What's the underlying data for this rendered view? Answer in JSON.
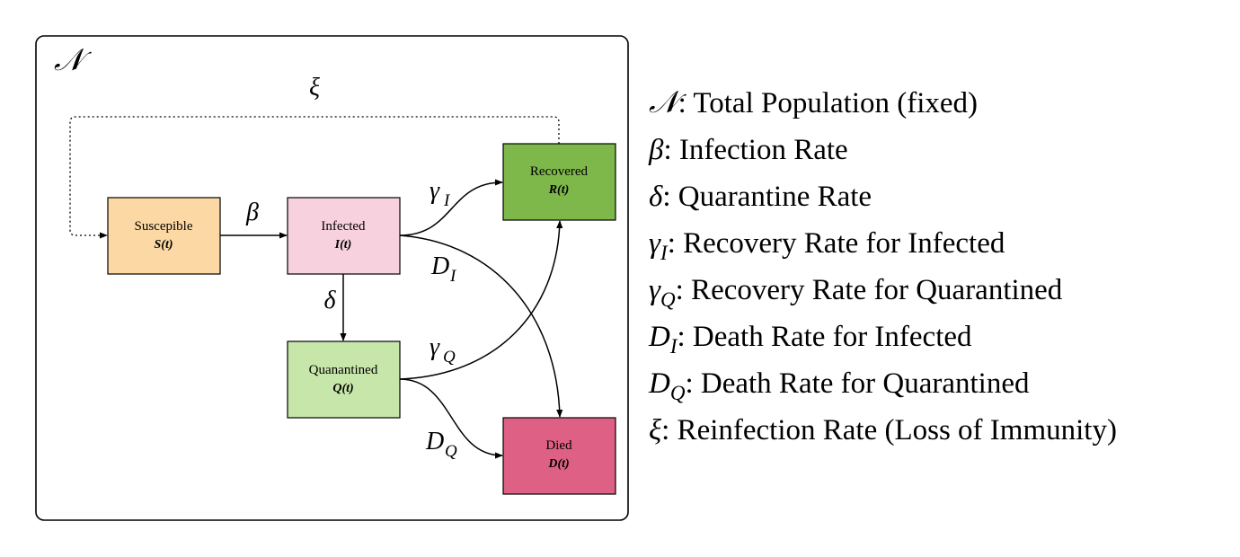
{
  "population_symbol": "𝒩",
  "nodes": {
    "susceptible": {
      "label": "Suscepible",
      "var": "S(t)",
      "color": "#fcd9a4"
    },
    "infected": {
      "label": "Infected",
      "var": "I(t)",
      "color": "#f8d1df"
    },
    "quarantined": {
      "label": "Quanantined",
      "var": "Q(t)",
      "color": "#c7e6aa"
    },
    "recovered": {
      "label": "Recovered",
      "var": "R(t)",
      "color": "#7eb84a"
    },
    "died": {
      "label": "Died",
      "var": "D(t)",
      "color": "#de6185"
    }
  },
  "edges": {
    "beta": "β",
    "delta": "δ",
    "gamma": "γ",
    "xi": "ξ",
    "d": "D",
    "sub_i": "I",
    "sub_q": "Q"
  },
  "legend": [
    {
      "sym": "𝒩",
      "sub": "",
      "text": ": Total Population (fixed)"
    },
    {
      "sym": "β",
      "sub": "",
      "text": ": Infection Rate"
    },
    {
      "sym": "δ",
      "sub": "",
      "text": ": Quarantine Rate"
    },
    {
      "sym": "γ",
      "sub": "I",
      "text": ": Recovery Rate for Infected"
    },
    {
      "sym": "γ",
      "sub": "Q",
      "text": ": Recovery Rate for Quarantined"
    },
    {
      "sym": "D",
      "sub": "I",
      "text": ": Death Rate for Infected"
    },
    {
      "sym": "D",
      "sub": "Q",
      "text": ": Death Rate for Quarantined"
    },
    {
      "sym": "ξ",
      "sub": "",
      "text": ": Reinfection Rate (Loss of Immunity)"
    }
  ]
}
